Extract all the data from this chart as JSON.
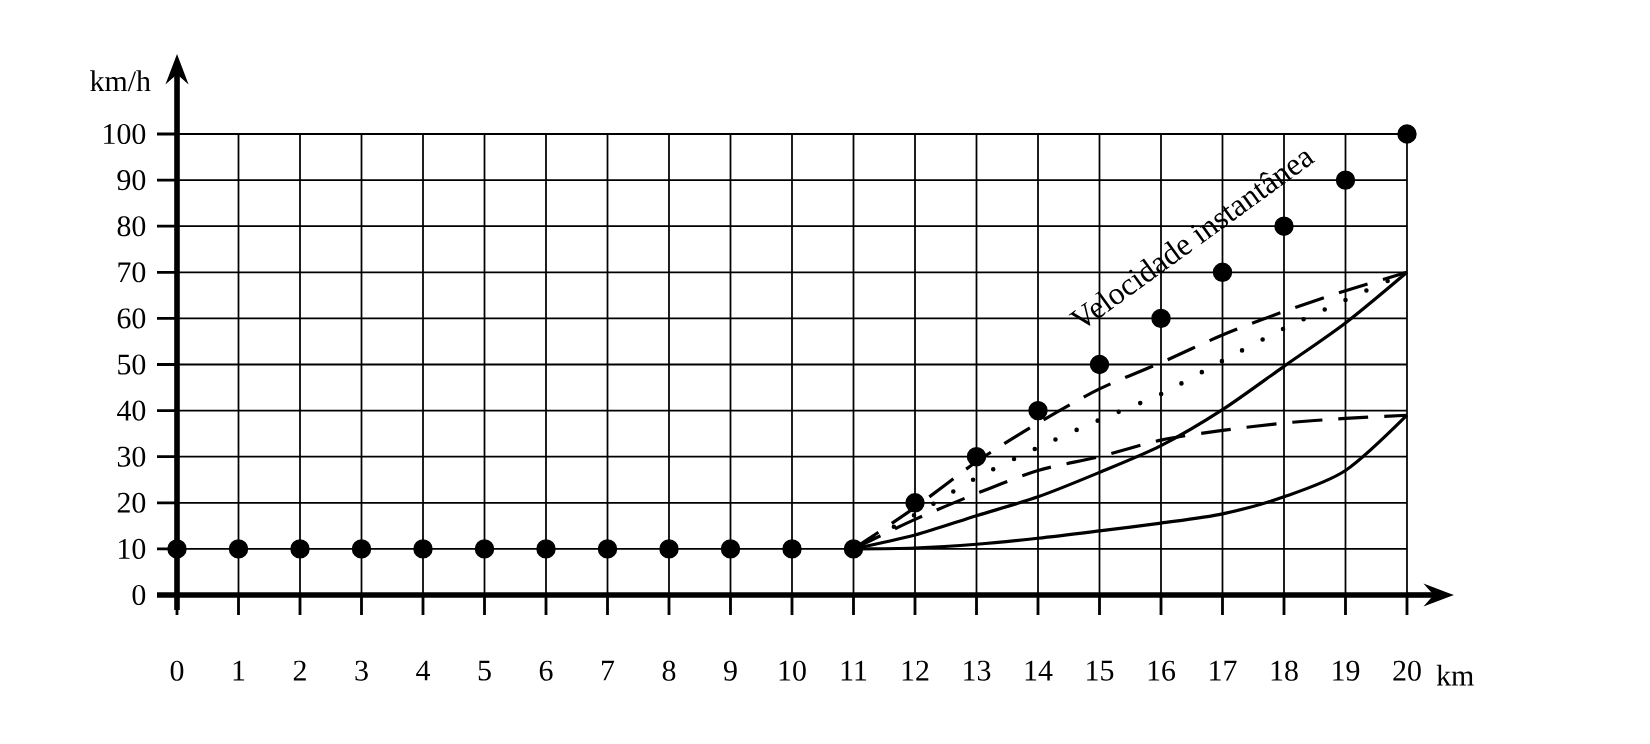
{
  "chart_data": {
    "type": "line",
    "xlabel": "km",
    "ylabel": "km/h",
    "annotations": [
      "Velocidade instantânea"
    ],
    "x": [
      0,
      1,
      2,
      3,
      4,
      5,
      6,
      7,
      8,
      9,
      10,
      11,
      12,
      13,
      14,
      15,
      16,
      17,
      18,
      19,
      20
    ],
    "xlim": [
      0,
      20
    ],
    "ylim": [
      0,
      100
    ],
    "xticks": [
      0,
      1,
      2,
      3,
      4,
      5,
      6,
      7,
      8,
      9,
      10,
      11,
      12,
      13,
      14,
      15,
      16,
      17,
      18,
      19,
      20
    ],
    "yticks": [
      0,
      10,
      20,
      30,
      40,
      50,
      60,
      70,
      80,
      90,
      100
    ],
    "grid": true,
    "series": [
      {
        "type": "scatter",
        "marker": "circle",
        "color": "#000000",
        "values": [
          10,
          10,
          10,
          10,
          10,
          10,
          10,
          10,
          10,
          10,
          10,
          10,
          20,
          30,
          40,
          50,
          60,
          70,
          80,
          90,
          100
        ]
      },
      {
        "marker": "none",
        "line_style": "dashed",
        "color": "#000000",
        "x": [
          11,
          12,
          13,
          14,
          15,
          16,
          17,
          18,
          19,
          20
        ],
        "values": [
          10,
          19,
          28.9,
          37.3,
          44.7,
          50.4,
          56.4,
          61.5,
          66,
          70
        ]
      },
      {
        "marker": "none",
        "line_style": "dotted",
        "color": "#000000",
        "x": [
          11,
          12,
          13,
          14,
          15,
          16,
          17,
          18,
          19,
          20
        ],
        "values": [
          10,
          17.4,
          25.4,
          32,
          38,
          43.6,
          50.8,
          57.8,
          64,
          70
        ]
      },
      {
        "marker": "none",
        "line_style": "solid",
        "color": "#000000",
        "x": [
          11,
          12,
          13,
          14,
          15,
          16,
          17,
          18,
          19,
          20
        ],
        "values": [
          10,
          13,
          17.2,
          21.3,
          26.6,
          32.4,
          40.2,
          49.6,
          59,
          70
        ]
      },
      {
        "marker": "none",
        "line_style": "dashed",
        "color": "#000000",
        "x": [
          11,
          12,
          13,
          14,
          15,
          16,
          17,
          18,
          19,
          20
        ],
        "values": [
          10,
          16.4,
          22,
          27,
          30,
          33.6,
          35.7,
          37.3,
          38.3,
          39
        ]
      },
      {
        "marker": "none",
        "line_style": "solid",
        "color": "#000000",
        "x": [
          11,
          12,
          13,
          14,
          15,
          16,
          17,
          18,
          19,
          20
        ],
        "values": [
          10,
          10.2,
          11,
          12.3,
          13.9,
          15.6,
          17.6,
          21.3,
          27,
          39
        ]
      }
    ]
  }
}
